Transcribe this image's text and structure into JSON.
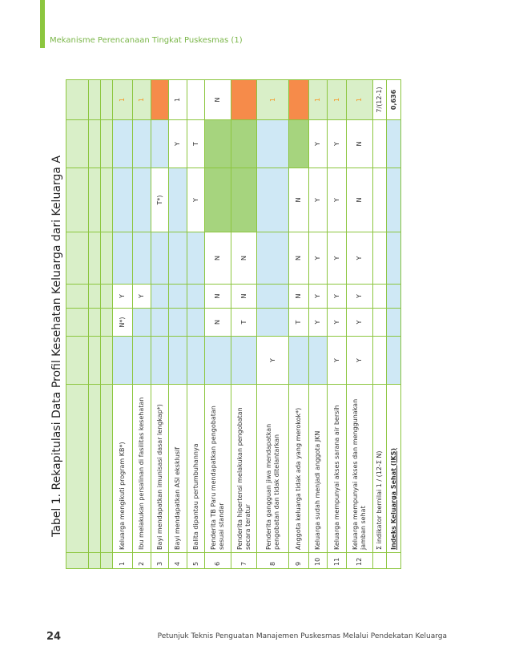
{
  "header": {
    "section": "Mekanisme Perencanaan Tingkat Puskesmas (1)"
  },
  "table": {
    "title": "Tabel 1. Rekapitulasi Data Profil Kesehatan Keluarga dari Keluarga A",
    "rows": [
      {
        "no": "1",
        "indicator": "Keluarga mengikuti program KB*)",
        "values": [
          "N*)",
          "Y",
          "1"
        ]
      },
      {
        "no": "2",
        "indicator": "Ibu melakukan persalinan di fasilitas kesehatan",
        "values": [
          "Y",
          "1"
        ]
      },
      {
        "no": "3",
        "indicator": "Bayi mendapatkan imunisasi dasar lengkap*)",
        "values": [
          "T*)"
        ]
      },
      {
        "no": "4",
        "indicator": "Bayi mendapatkan ASI eksklusif",
        "values": [
          "Y",
          "1"
        ]
      },
      {
        "no": "5",
        "indicator": "Balita dipantau pertumbuhannya",
        "values": [
          "Y",
          "T"
        ]
      },
      {
        "no": "6",
        "indicator": "Penderita TB Paru mendapatkan pengobatan sesuai standar",
        "values": [
          "N",
          "N",
          "N",
          "N"
        ]
      },
      {
        "no": "7",
        "indicator": "Penderita hipertensi melakukan pengobatan secara teratur",
        "values": [
          "T",
          "N",
          "N"
        ]
      },
      {
        "no": "8",
        "indicator": "Penderita gangguan jiwa mendapatkan pengobatan dan tidak ditelantarkan",
        "values": [
          "Y",
          "1"
        ]
      },
      {
        "no": "9",
        "indicator": "Anggota keluarga tidak ada yang merokok*)",
        "values": [
          "T",
          "N",
          "N",
          "N"
        ]
      },
      {
        "no": "10",
        "indicator": "Keluarga sudah menjadi anggota JKN",
        "values": [
          "Y",
          "Y",
          "Y",
          "Y",
          "Y",
          "1"
        ]
      },
      {
        "no": "11",
        "indicator": "Keluarga mempunyai akses sarana air bersih",
        "values": [
          "Y",
          "Y",
          "Y",
          "Y",
          "Y",
          "Y",
          "1"
        ]
      },
      {
        "no": "12",
        "indicator": "Keluarga mempunyai akses dan menggunakan jamban sehat",
        "values": [
          "Y",
          "Y",
          "Y",
          "Y",
          "N",
          "N",
          "1"
        ]
      },
      {
        "indicator": "Σ indikator bernilai 1 / (12-Σ N)",
        "values": [
          "7/(12-1)"
        ]
      },
      {
        "indicator": "Indeks Keluarga Sehat (IKS)",
        "values": [
          "0,636"
        ]
      }
    ]
  },
  "footer": {
    "page": "24",
    "text": "Petunjuk Teknis Penguatan Manajemen Puskesmas Melalui Pendekatan Keluarga"
  }
}
